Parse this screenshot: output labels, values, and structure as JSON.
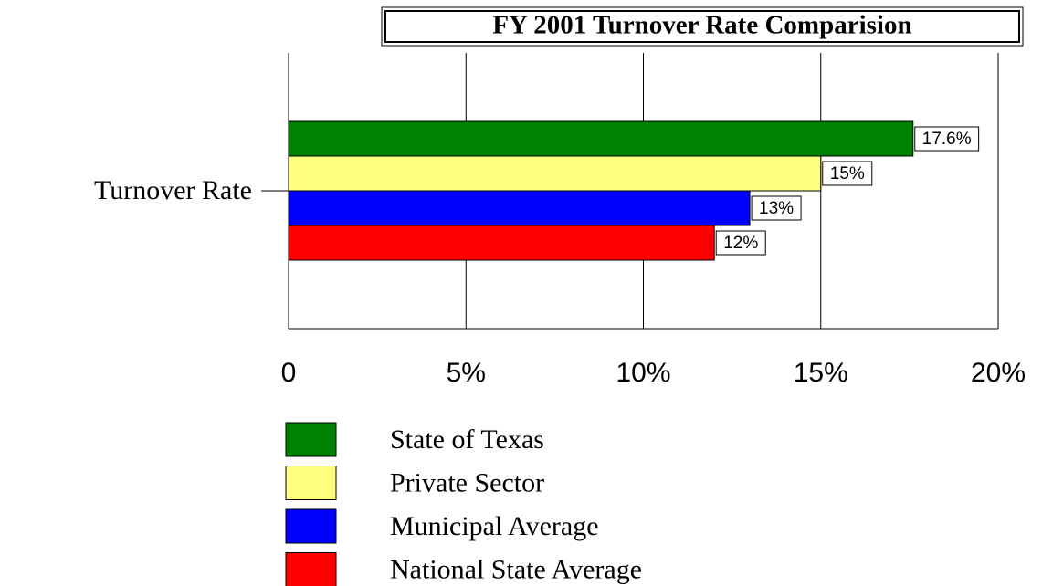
{
  "chart_data": {
    "type": "bar",
    "orientation": "horizontal",
    "title": "FY 2001 Turnover Rate Comparision",
    "categories": [
      "Turnover Rate"
    ],
    "series": [
      {
        "name": "State of Texas",
        "color": "#008000",
        "values": [
          17.6
        ],
        "value_labels": [
          "17.6%"
        ]
      },
      {
        "name": "Private Sector",
        "color": "#ffff80",
        "values": [
          15
        ],
        "value_labels": [
          "15%"
        ]
      },
      {
        "name": "Municipal Average",
        "color": "#0000ff",
        "values": [
          13
        ],
        "value_labels": [
          "13%"
        ]
      },
      {
        "name": "National State Average",
        "color": "#ff0000",
        "values": [
          12
        ],
        "value_labels": [
          "12%"
        ]
      }
    ],
    "xlim": [
      0,
      20
    ],
    "xticks": [
      0,
      {
        "value": 5,
        "label": "5%"
      },
      {
        "value": 10,
        "label": "10%"
      },
      {
        "value": 15,
        "label": "15%"
      },
      {
        "value": 20,
        "label": "20%"
      }
    ],
    "grid": true,
    "legend": "bottom"
  }
}
